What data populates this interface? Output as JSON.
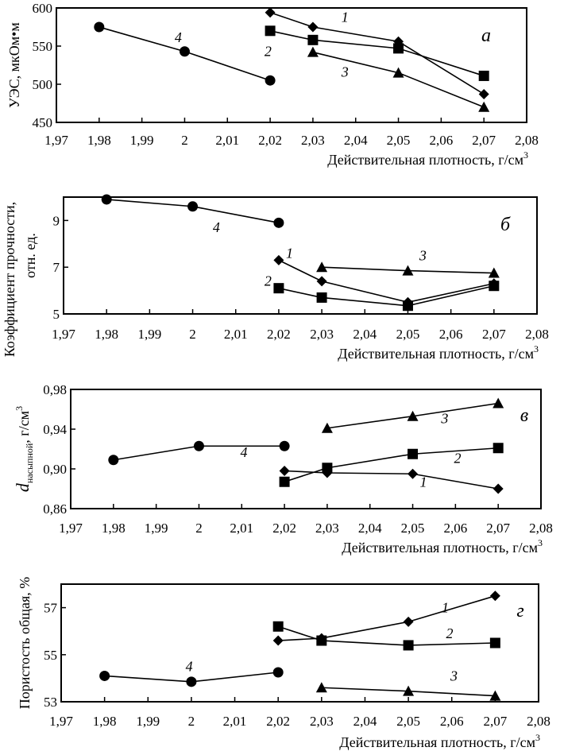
{
  "chart_data": [
    {
      "type": "line",
      "panel_letter": "а",
      "title": "",
      "xlabel": "Действительная плотность, г/см",
      "xlabel_sup": "3",
      "ylabel": "УЭС, мкОм•м",
      "xlim": [
        1.97,
        2.08
      ],
      "ylim": [
        450,
        600
      ],
      "x_ticks": [
        "1,97",
        "1,98",
        "1,99",
        "2",
        "2,01",
        "2,02",
        "2,03",
        "2,04",
        "2,05",
        "2,06",
        "2,07",
        "2,08"
      ],
      "y_ticks": [
        "450",
        "500",
        "550",
        "600"
      ],
      "y_tick_values": [
        450,
        500,
        550,
        600
      ],
      "grid": false,
      "series": [
        {
          "name": "1",
          "marker": "diamond",
          "x": [
            2.02,
            2.03,
            2.05,
            2.07
          ],
          "y": [
            594,
            575,
            556,
            487
          ]
        },
        {
          "name": "2",
          "marker": "square",
          "x": [
            2.02,
            2.03,
            2.05,
            2.07
          ],
          "y": [
            570,
            558,
            547,
            511
          ]
        },
        {
          "name": "3",
          "marker": "triangle",
          "x": [
            2.03,
            2.05,
            2.07
          ],
          "y": [
            542,
            515,
            470
          ]
        },
        {
          "name": "4",
          "marker": "circle",
          "x": [
            1.98,
            2.0,
            2.02
          ],
          "y": [
            575,
            543,
            505
          ]
        }
      ],
      "series_labels": [
        {
          "text": "1",
          "x": 2.0375,
          "y": 582
        },
        {
          "text": "2",
          "x": 2.0195,
          "y": 537
        },
        {
          "text": "3",
          "x": 2.0375,
          "y": 510
        },
        {
          "text": "4",
          "x": 1.9985,
          "y": 555
        }
      ]
    },
    {
      "type": "line",
      "panel_letter": "б",
      "title": "",
      "xlabel": "Действительная плотность, г/см",
      "xlabel_sup": "3",
      "ylabel": "Коэффициент прочности, отн. ед.",
      "ylabel_line1": "Коэффициент прочности,",
      "ylabel_line2": "отн. ед.",
      "xlim": [
        1.97,
        2.08
      ],
      "ylim": [
        5,
        10
      ],
      "x_ticks": [
        "1,97",
        "1,98",
        "1,99",
        "2",
        "2,01",
        "2,02",
        "2,03",
        "2,04",
        "2,05",
        "2,06",
        "2,07",
        "2,08"
      ],
      "y_ticks": [
        "5",
        "7",
        "9"
      ],
      "y_tick_values": [
        5,
        7,
        9
      ],
      "grid": false,
      "series": [
        {
          "name": "1",
          "marker": "diamond",
          "x": [
            2.02,
            2.03,
            2.05,
            2.07
          ],
          "y": [
            7.3,
            6.4,
            5.5,
            6.3
          ]
        },
        {
          "name": "2",
          "marker": "square",
          "x": [
            2.02,
            2.03,
            2.05,
            2.07
          ],
          "y": [
            6.1,
            5.7,
            5.35,
            6.2
          ]
        },
        {
          "name": "3",
          "marker": "triangle",
          "x": [
            2.03,
            2.05,
            2.07
          ],
          "y": [
            7.0,
            6.85,
            6.75
          ]
        },
        {
          "name": "4",
          "marker": "circle",
          "x": [
            1.98,
            2.0,
            2.02
          ],
          "y": [
            9.9,
            9.6,
            8.9
          ]
        }
      ],
      "series_labels": [
        {
          "text": "1",
          "x": 2.0225,
          "y": 7.4
        },
        {
          "text": "2",
          "x": 2.0175,
          "y": 6.2
        },
        {
          "text": "3",
          "x": 2.0535,
          "y": 7.3
        },
        {
          "text": "4",
          "x": 2.0055,
          "y": 8.5
        }
      ]
    },
    {
      "type": "line",
      "panel_letter": "в",
      "title": "",
      "xlabel": "Действительная плотность, г/см",
      "xlabel_sup": "3",
      "ylabel": "d насыпной, г/см3",
      "ylabel_main": "d",
      "ylabel_sub": "насыпной",
      "ylabel_rest": ", г/см",
      "ylabel_sup": "3",
      "xlim": [
        1.97,
        2.08
      ],
      "ylim": [
        0.86,
        0.98
      ],
      "x_ticks": [
        "1,97",
        "1,98",
        "1,99",
        "2",
        "2,01",
        "2,02",
        "2,03",
        "2,04",
        "2,05",
        "2,06",
        "2,07",
        "2,08"
      ],
      "y_ticks": [
        "0,86",
        "0,90",
        "0,94",
        "0,98"
      ],
      "y_tick_values": [
        0.86,
        0.9,
        0.94,
        0.98
      ],
      "grid": false,
      "series": [
        {
          "name": "1",
          "marker": "diamond",
          "x": [
            2.02,
            2.03,
            2.05,
            2.07
          ],
          "y": [
            0.898,
            0.896,
            0.895,
            0.88
          ]
        },
        {
          "name": "2",
          "marker": "square",
          "x": [
            2.02,
            2.03,
            2.05,
            2.07
          ],
          "y": [
            0.887,
            0.901,
            0.915,
            0.921
          ]
        },
        {
          "name": "3",
          "marker": "triangle",
          "x": [
            2.03,
            2.05,
            2.07
          ],
          "y": [
            0.941,
            0.953,
            0.966
          ]
        },
        {
          "name": "4",
          "marker": "circle",
          "x": [
            1.98,
            2.0,
            2.02
          ],
          "y": [
            0.909,
            0.923,
            0.923
          ]
        }
      ],
      "series_labels": [
        {
          "text": "1",
          "x": 2.0525,
          "y": 0.882
        },
        {
          "text": "2",
          "x": 2.0605,
          "y": 0.906
        },
        {
          "text": "3",
          "x": 2.0575,
          "y": 0.946
        },
        {
          "text": "4",
          "x": 2.0105,
          "y": 0.912
        }
      ]
    },
    {
      "type": "line",
      "panel_letter": "г",
      "title": "",
      "xlabel": "Действительная плотность, г/см",
      "xlabel_sup": "3",
      "ylabel": "Пористость общая, %",
      "xlim": [
        1.97,
        2.08
      ],
      "ylim": [
        53,
        58
      ],
      "x_ticks": [
        "1,97",
        "1,98",
        "1,99",
        "2",
        "2,01",
        "2,02",
        "2,03",
        "2,04",
        "2,05",
        "2,06",
        "2,07",
        "2,08"
      ],
      "y_ticks": [
        "53",
        "55",
        "57"
      ],
      "y_tick_values": [
        53,
        55,
        57
      ],
      "grid": false,
      "series": [
        {
          "name": "1",
          "marker": "diamond",
          "x": [
            2.02,
            2.03,
            2.05,
            2.07
          ],
          "y": [
            55.6,
            55.7,
            56.4,
            57.5
          ]
        },
        {
          "name": "2",
          "marker": "square",
          "x": [
            2.02,
            2.03,
            2.05,
            2.07
          ],
          "y": [
            56.2,
            55.6,
            55.4,
            55.5
          ]
        },
        {
          "name": "3",
          "marker": "triangle",
          "x": [
            2.03,
            2.05,
            2.07
          ],
          "y": [
            53.6,
            53.45,
            53.25
          ]
        },
        {
          "name": "4",
          "marker": "circle",
          "x": [
            1.98,
            2.0,
            2.02
          ],
          "y": [
            54.1,
            53.85,
            54.25
          ]
        }
      ],
      "series_labels": [
        {
          "text": "1",
          "x": 2.0585,
          "y": 56.8
        },
        {
          "text": "2",
          "x": 2.0595,
          "y": 55.7
        },
        {
          "text": "3",
          "x": 2.0605,
          "y": 53.9
        },
        {
          "text": "4",
          "x": 1.9995,
          "y": 54.3
        }
      ]
    }
  ]
}
